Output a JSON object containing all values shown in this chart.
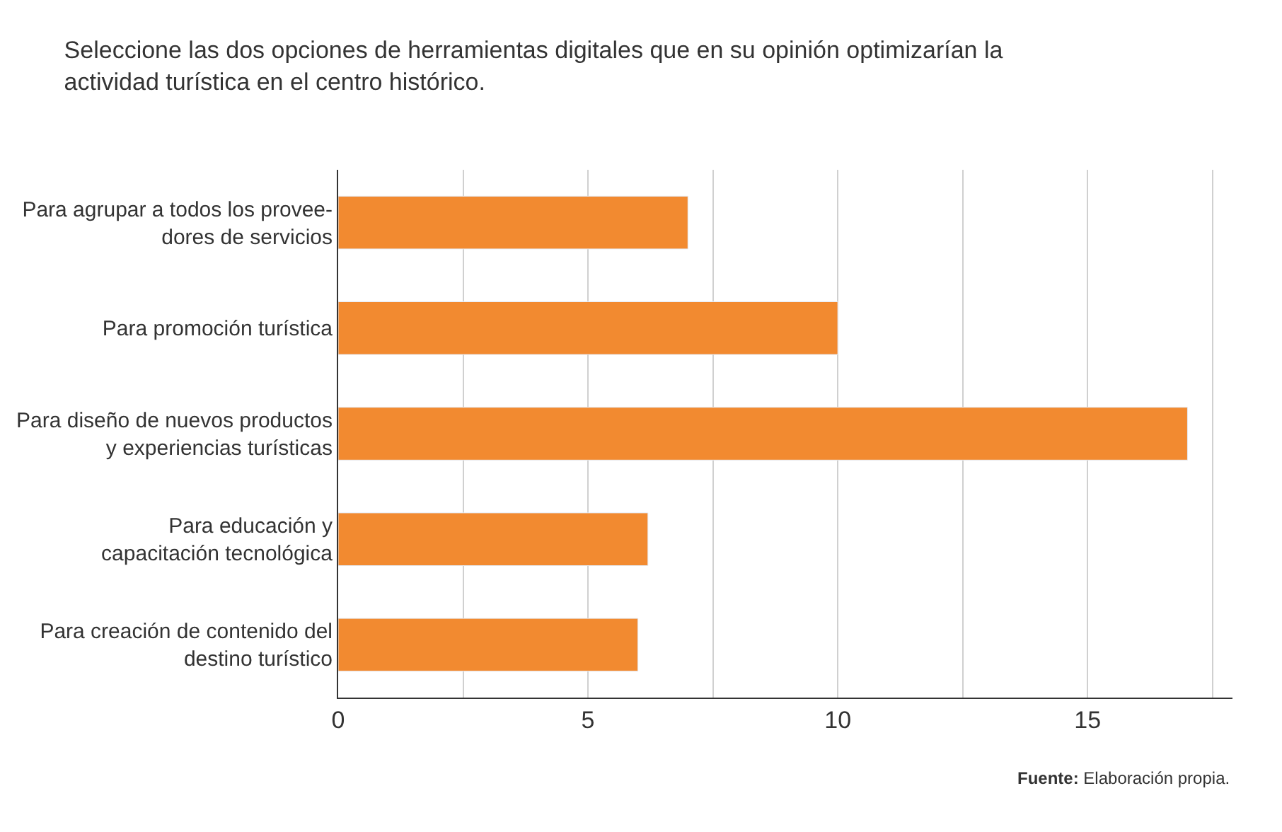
{
  "chart_data": {
    "type": "bar",
    "orientation": "horizontal",
    "title": "Seleccione las dos opciones de herramientas digitales que en su opinión optimizarían la\nactividad turística en el centro histórico.",
    "categories": [
      "Para agrupar a todos los provee-\ndores de servicios",
      "Para promoción turística",
      "Para diseño de nuevos productos\ny experiencias turísticas",
      "Para educación y\ncapacitación tecnológica",
      "Para creación de contenido del\ndestino turístico"
    ],
    "values": [
      7,
      10,
      17,
      6.2,
      6
    ],
    "color": "#f28a30",
    "xlim": [
      0,
      17.9
    ],
    "xticks": [
      0,
      {
        "value": 2.5,
        "label": null
      },
      5,
      {
        "value": 7.5,
        "label": null
      },
      10,
      {
        "value": 12.5,
        "label": null
      },
      15,
      {
        "value": 17.5,
        "label": null
      }
    ],
    "grid": "x",
    "legend": false,
    "annotations": [
      "Fuente: Elaboración propia."
    ]
  }
}
